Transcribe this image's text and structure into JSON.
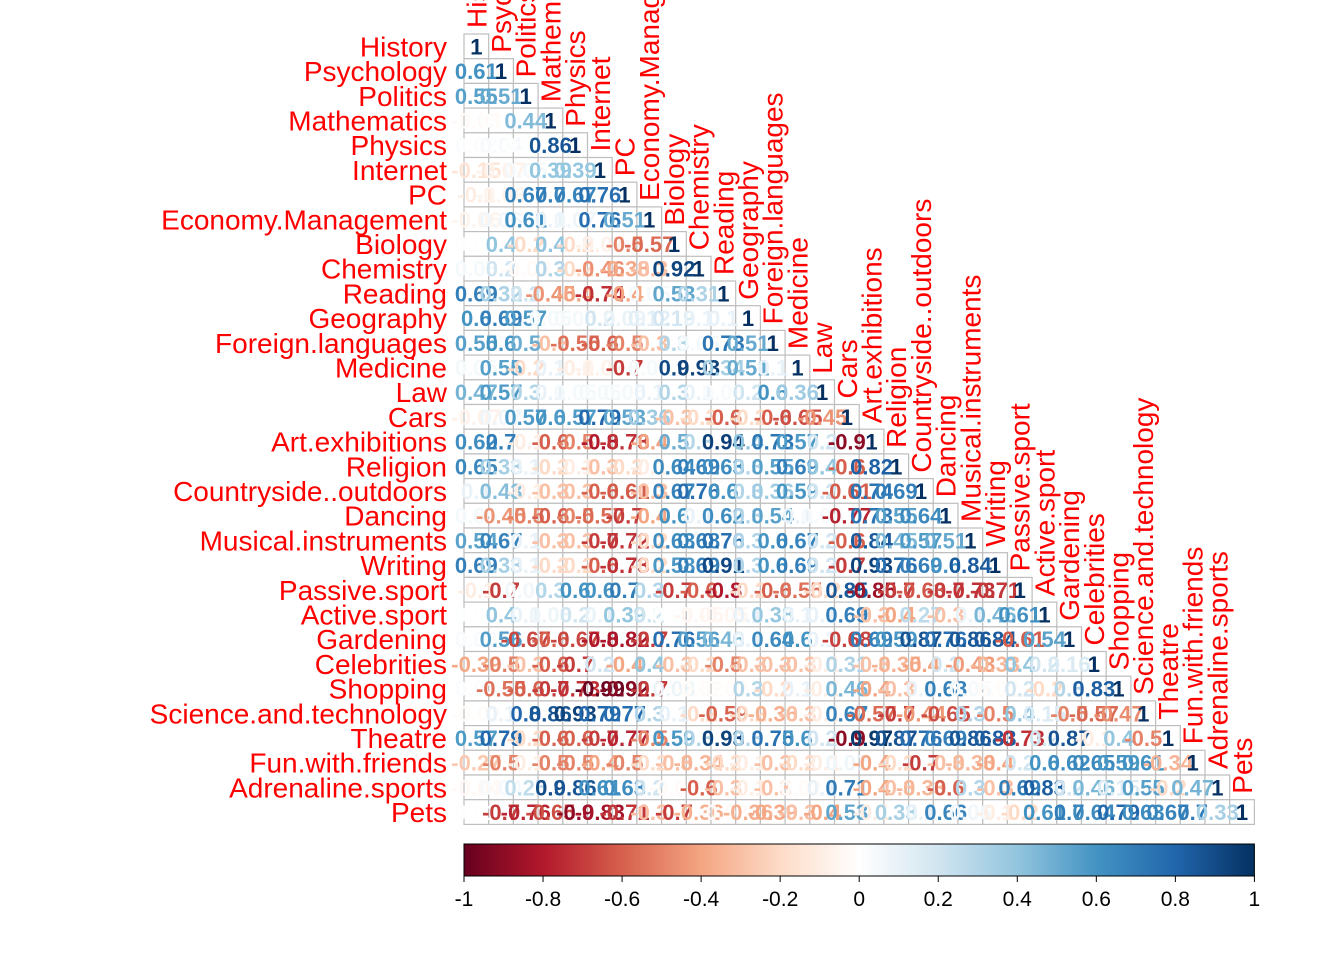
{
  "chart_data": {
    "type": "heatmap",
    "style": "lower-triangle correlation matrix with numeric coefficients",
    "variables": [
      "History",
      "Psychology",
      "Politics",
      "Mathematics",
      "Physics",
      "Internet",
      "PC",
      "Economy.Management",
      "Biology",
      "Chemistry",
      "Reading",
      "Geography",
      "Foreign.languages",
      "Medicine",
      "Law",
      "Cars",
      "Art.exhibitions",
      "Religion",
      "Countryside..outdoors",
      "Dancing",
      "Musical.instruments",
      "Writing",
      "Passive.sport",
      "Active.sport",
      "Gardening",
      "Celebrities",
      "Shopping",
      "Science.and.technology",
      "Theatre",
      "Fun.with.friends",
      "Adrenaline.sports",
      "Pets"
    ],
    "column_label_style": "rotated 90 degrees on the diagonal, red",
    "row_label_style": "left of matrix, red",
    "matrix_lower": [
      [
        1
      ],
      [
        0.61,
        1
      ],
      [
        0.55,
        0.51,
        1
      ],
      [
        -0.03,
        0.01,
        0.44,
        1
      ],
      [
        0.02,
        0.04,
        0.01,
        0.86,
        1
      ],
      [
        -0.15,
        -0.07,
        0.05,
        0.39,
        0.39,
        1
      ],
      [
        -0.1,
        -0.06,
        0.67,
        0.7,
        0.67,
        0.76,
        1
      ],
      [
        -0.06,
        0.06,
        0.61,
        0.1,
        0.07,
        0.76,
        0.51,
        1
      ],
      [
        0.01,
        0.4,
        -0.2,
        0.4,
        -0.2,
        -0.07,
        -0.5,
        -0.57,
        1
      ],
      [
        0.05,
        0.2,
        -0.03,
        0.3,
        -0.2,
        -0.46,
        -0.38,
        -0.3,
        0.92,
        1
      ],
      [
        0.69,
        0.32,
        0.2,
        -0.45,
        -0.4,
        -0.74,
        -0.4,
        0.05,
        0.53,
        0.31,
        1
      ],
      [
        0.6,
        0.69,
        0.57,
        0.05,
        0.05,
        0.2,
        0.09,
        0.12,
        0.19,
        0.1,
        0.1,
        1
      ],
      [
        0.55,
        0.6,
        0.5,
        -0.3,
        -0.55,
        -0.6,
        -0.5,
        -0.3,
        0.3,
        0.05,
        0.73,
        0.51,
        1
      ],
      [
        0.05,
        0.55,
        -0.2,
        0.1,
        -0.1,
        -0.07,
        -0.7,
        0.05,
        0.9,
        0.93,
        0.34,
        0.51,
        0.1,
        1
      ],
      [
        0.47,
        0.57,
        0.3,
        0.1,
        0.05,
        0.05,
        0.05,
        0.1,
        0.3,
        0.1,
        0.03,
        0.2,
        0.6,
        0.36,
        1
      ],
      [
        -0.07,
        0.07,
        0.57,
        0.6,
        0.57,
        0.79,
        0.53,
        0.36,
        -0.3,
        -0.2,
        -0.6,
        -0.2,
        -0.6,
        -0.65,
        -0.45,
        1
      ],
      [
        0.62,
        0.7,
        -0.1,
        -0.6,
        -0.5,
        -0.8,
        -0.73,
        -0.4,
        0.5,
        0.3,
        0.94,
        0.4,
        0.73,
        0.57,
        0.2,
        -0.9,
        1
      ],
      [
        0.65,
        0.33,
        0.1,
        -0.2,
        -0.1,
        -0.3,
        -0.2,
        -0.1,
        0.64,
        0.69,
        0.63,
        0.3,
        0.55,
        0.69,
        0.4,
        -0.6,
        0.82,
        1
      ],
      [
        0.1,
        0.43,
        -0.1,
        -0.3,
        -0.3,
        -0.6,
        -0.61,
        -0.3,
        0.67,
        0.76,
        0.6,
        0.3,
        0.36,
        0.59,
        0.2,
        -0.61,
        0.74,
        0.69,
        1
      ],
      [
        0.05,
        -0.45,
        -0.5,
        -0.6,
        -0.5,
        -0.57,
        -0.7,
        -0.4,
        0.6,
        0.1,
        0.62,
        0.3,
        0.54,
        0.1,
        0.04,
        -0.77,
        0.73,
        0.55,
        0.64,
        1
      ],
      [
        0.54,
        0.67,
        0.1,
        -0.3,
        -0.3,
        -0.7,
        -0.72,
        -0.2,
        0.63,
        0.68,
        0.76,
        0.3,
        0.6,
        0.67,
        0.2,
        -0.6,
        0.84,
        0.45,
        0.57,
        0.51,
        1
      ],
      [
        0.69,
        0.33,
        0.1,
        -0.2,
        -0.2,
        -0.6,
        -0.73,
        -0.2,
        0.58,
        0.69,
        0.91,
        0.3,
        0.6,
        0.69,
        0.2,
        -0.7,
        0.93,
        0.76,
        0.69,
        0.6,
        0.84,
        1
      ],
      [
        -0.1,
        -0.7,
        0.06,
        0.3,
        0.6,
        0.6,
        0.7,
        0.3,
        -0.7,
        -0.6,
        -0.8,
        -0.2,
        -0.6,
        -0.55,
        -0.2,
        0.85,
        -0.85,
        -0.7,
        -0.63,
        -0.7,
        -0.73,
        -0.71,
        1
      ],
      [
        0.01,
        0.4,
        0.1,
        0.08,
        0.2,
        0.1,
        0.39,
        0.2,
        0.01,
        -0.05,
        -0.05,
        0.1,
        0.38,
        0.1,
        0.1,
        0.69,
        -0.3,
        -0.4,
        0.27,
        -0.3,
        0.1,
        0.46,
        0.61,
        1
      ],
      [
        0.03,
        0.56,
        -0.67,
        -0.6,
        -0.67,
        -0.8,
        -0.82,
        -0.7,
        0.76,
        0.56,
        0.46,
        0.1,
        0.64,
        0.6,
        0.1,
        -0.68,
        0.69,
        0.59,
        0.87,
        0.76,
        0.86,
        0.84,
        -0.61,
        0.54,
        1
      ],
      [
        -0.39,
        -0.5,
        -0.3,
        -0.6,
        -0.7,
        0.2,
        -0.4,
        0.4,
        -0.3,
        -0.2,
        -0.5,
        -0.3,
        -0.3,
        -0.3,
        -0.1,
        0.31,
        -0.3,
        -0.35,
        -0.4,
        0.2,
        -0.43,
        -0.33,
        0.4,
        0.2,
        0.16,
        1
      ],
      [
        0.02,
        -0.55,
        -0.6,
        -0.7,
        -0.73,
        -0.99,
        -0.92,
        -0.7,
        0.08,
        -0.02,
        -0.02,
        0.3,
        -0.2,
        0.1,
        -0.1,
        0.46,
        -0.4,
        -0.3,
        0.1,
        0.68,
        0.05,
        -0.02,
        0.2,
        -0.2,
        0.3,
        0.83,
        1
      ],
      [
        -0.02,
        0.1,
        0.8,
        0.86,
        0.93,
        0.79,
        0.77,
        0.3,
        0.1,
        -0.2,
        -0.59,
        -0.2,
        -0.36,
        -0.3,
        -0.1,
        0.67,
        -0.57,
        -0.7,
        -0.44,
        -0.65,
        0.3,
        -0.5,
        0.4,
        0.15,
        -0.5,
        -0.57,
        -0.47,
        1
      ],
      [
        0.57,
        0.79,
        -0.2,
        -0.6,
        -0.6,
        -0.7,
        -0.77,
        -0.5,
        0.59,
        0.3,
        0.93,
        0.3,
        0.75,
        0.6,
        0.2,
        -0.9,
        0.97,
        0.87,
        0.76,
        0.69,
        0.86,
        0.83,
        -0.73,
        0.2,
        0.87,
        -0.1,
        0.4,
        -0.5,
        1
      ],
      [
        -0.27,
        -0.5,
        -0.1,
        -0.5,
        -0.5,
        -0.4,
        -0.5,
        -0.2,
        -0.3,
        -0.34,
        -0.2,
        -0.1,
        -0.3,
        -0.2,
        -0.1,
        0.07,
        -0.4,
        -0.2,
        -0.7,
        -0.3,
        -0.33,
        -0.4,
        0.2,
        0.6,
        0.62,
        0.65,
        0.59,
        0.61,
        -0.34,
        1
      ],
      [
        -0.04,
        0.04,
        0.25,
        0.9,
        0.86,
        0.61,
        0.63,
        0.2,
        -0.03,
        -0.6,
        -0.3,
        -0.1,
        -0.3,
        -0.02,
        0.1,
        0.71,
        -0.4,
        -0.3,
        -0.33,
        -0.6,
        0.3,
        -0.3,
        0.69,
        0.83,
        0.2,
        0.46,
        0.15,
        0.55,
        -0.2,
        0.47,
        1
      ],
      [
        0.01,
        -0.7,
        -0.76,
        -0.65,
        -0.9,
        -0.83,
        -0.71,
        -0.3,
        -0.7,
        -0.36,
        -0.03,
        -0.36,
        -0.39,
        -0.3,
        -0.4,
        0.53,
        -0.1,
        0.33,
        0.1,
        0.66,
        0.06,
        -0.1,
        -0.2,
        0.61,
        0.7,
        0.64,
        0.79,
        0.63,
        0.67,
        0.7,
        0.33,
        1
      ]
    ],
    "colorbar": {
      "ticks": [
        "-1",
        "-0.8",
        "-0.6",
        "-0.4",
        "-0.2",
        "0",
        "0.2",
        "0.4",
        "0.6",
        "0.8",
        "1"
      ],
      "range": [
        -1,
        1
      ],
      "orientation": "horizontal",
      "placement": "bottom",
      "colors": [
        "#67001F",
        "#B2182B",
        "#D6604D",
        "#F4A582",
        "#FDDBC7",
        "#FFFFFF",
        "#D1E5F0",
        "#92C5DE",
        "#4393C3",
        "#2166AC",
        "#053061"
      ]
    },
    "label_color": "#FF0000",
    "grid_color": "#BEBEBE"
  }
}
